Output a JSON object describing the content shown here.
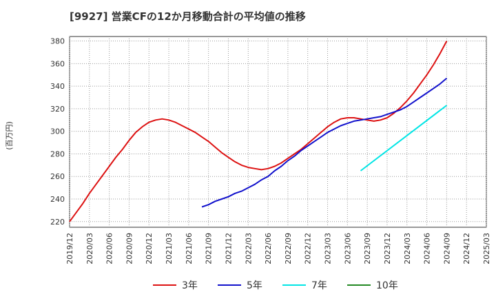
{
  "chart_data": {
    "type": "line",
    "title": "[9927]  営業CFの12か月移動合計の平均値の推移",
    "ylabel": "(百万円)",
    "xlabel": "",
    "ylim": [
      215,
      384
    ],
    "yticks": [
      220,
      240,
      260,
      280,
      300,
      320,
      340,
      360,
      380
    ],
    "xticks": [
      "2019/12",
      "2020/03",
      "2020/06",
      "2020/09",
      "2020/12",
      "2021/03",
      "2021/06",
      "2021/09",
      "2021/12",
      "2022/03",
      "2022/06",
      "2022/09",
      "2022/12",
      "2023/03",
      "2023/06",
      "2023/09",
      "2023/12",
      "2024/03",
      "2024/06",
      "2024/09",
      "2024/12",
      "2025/03"
    ],
    "grid": true,
    "legend_position": "bottom",
    "series": [
      {
        "name": "3年",
        "color": "#dd1111",
        "points": [
          [
            "2019/12",
            220
          ],
          [
            "2020/01",
            228
          ],
          [
            "2020/02",
            236
          ],
          [
            "2020/03",
            245
          ],
          [
            "2020/04",
            253
          ],
          [
            "2020/05",
            261
          ],
          [
            "2020/06",
            269
          ],
          [
            "2020/07",
            277
          ],
          [
            "2020/08",
            284
          ],
          [
            "2020/09",
            292
          ],
          [
            "2020/10",
            299
          ],
          [
            "2020/11",
            304
          ],
          [
            "2020/12",
            308
          ],
          [
            "2021/01",
            310
          ],
          [
            "2021/02",
            311
          ],
          [
            "2021/03",
            310
          ],
          [
            "2021/04",
            308
          ],
          [
            "2021/05",
            305
          ],
          [
            "2021/06",
            302
          ],
          [
            "2021/07",
            299
          ],
          [
            "2021/08",
            295
          ],
          [
            "2021/09",
            291
          ],
          [
            "2021/10",
            286
          ],
          [
            "2021/11",
            281
          ],
          [
            "2021/12",
            277
          ],
          [
            "2022/01",
            273
          ],
          [
            "2022/02",
            270
          ],
          [
            "2022/03",
            268
          ],
          [
            "2022/04",
            267
          ],
          [
            "2022/05",
            266
          ],
          [
            "2022/06",
            267
          ],
          [
            "2022/07",
            269
          ],
          [
            "2022/08",
            272
          ],
          [
            "2022/09",
            276
          ],
          [
            "2022/10",
            280
          ],
          [
            "2022/11",
            284
          ],
          [
            "2022/12",
            289
          ],
          [
            "2023/01",
            294
          ],
          [
            "2023/02",
            299
          ],
          [
            "2023/03",
            304
          ],
          [
            "2023/04",
            308
          ],
          [
            "2023/05",
            311
          ],
          [
            "2023/06",
            312
          ],
          [
            "2023/07",
            312
          ],
          [
            "2023/08",
            311
          ],
          [
            "2023/09",
            310
          ],
          [
            "2023/10",
            309
          ],
          [
            "2023/11",
            310
          ],
          [
            "2023/12",
            312
          ],
          [
            "2024/01",
            316
          ],
          [
            "2024/02",
            321
          ],
          [
            "2024/03",
            327
          ],
          [
            "2024/04",
            334
          ],
          [
            "2024/05",
            342
          ],
          [
            "2024/06",
            350
          ],
          [
            "2024/07",
            359
          ],
          [
            "2024/08",
            369
          ],
          [
            "2024/09",
            380
          ]
        ]
      },
      {
        "name": "5年",
        "color": "#1111cc",
        "points": [
          [
            "2021/08",
            233
          ],
          [
            "2021/09",
            235
          ],
          [
            "2021/10",
            238
          ],
          [
            "2021/11",
            240
          ],
          [
            "2021/12",
            242
          ],
          [
            "2022/01",
            245
          ],
          [
            "2022/02",
            247
          ],
          [
            "2022/03",
            250
          ],
          [
            "2022/04",
            253
          ],
          [
            "2022/05",
            257
          ],
          [
            "2022/06",
            260
          ],
          [
            "2022/07",
            265
          ],
          [
            "2022/08",
            269
          ],
          [
            "2022/09",
            274
          ],
          [
            "2022/10",
            278
          ],
          [
            "2022/11",
            283
          ],
          [
            "2022/12",
            287
          ],
          [
            "2023/01",
            291
          ],
          [
            "2023/02",
            295
          ],
          [
            "2023/03",
            299
          ],
          [
            "2023/04",
            302
          ],
          [
            "2023/05",
            305
          ],
          [
            "2023/06",
            307
          ],
          [
            "2023/07",
            309
          ],
          [
            "2023/08",
            310
          ],
          [
            "2023/09",
            311
          ],
          [
            "2023/10",
            312
          ],
          [
            "2023/11",
            313
          ],
          [
            "2023/12",
            315
          ],
          [
            "2024/01",
            317
          ],
          [
            "2024/02",
            319
          ],
          [
            "2024/03",
            322
          ],
          [
            "2024/04",
            326
          ],
          [
            "2024/05",
            330
          ],
          [
            "2024/06",
            334
          ],
          [
            "2024/07",
            338
          ],
          [
            "2024/08",
            342
          ],
          [
            "2024/09",
            347
          ]
        ]
      },
      {
        "name": "7年",
        "color": "#00e5e5",
        "points": [
          [
            "2023/08",
            265
          ],
          [
            "2024/09",
            323
          ]
        ]
      },
      {
        "name": "10年",
        "color": "#228822",
        "points": []
      }
    ]
  }
}
